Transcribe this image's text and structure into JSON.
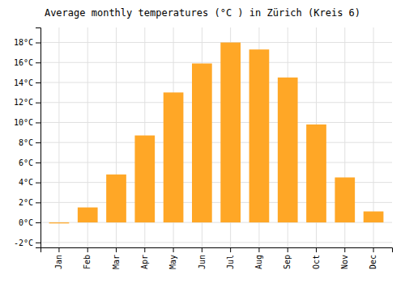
{
  "chart_data": {
    "type": "bar",
    "title": "Average monthly temperatures (°C ) in Zürich (Kreis 6)",
    "categories": [
      "Jan",
      "Feb",
      "Mar",
      "Apr",
      "May",
      "Jun",
      "Jul",
      "Aug",
      "Sep",
      "Oct",
      "Nov",
      "Dec"
    ],
    "values": [
      -0.1,
      1.5,
      4.8,
      8.7,
      13.0,
      15.9,
      18.0,
      17.3,
      14.5,
      9.8,
      4.5,
      1.1
    ],
    "color": "#FFA726",
    "ylim": [
      -2.5,
      19.5
    ],
    "yticks": [
      {
        "value": -2,
        "label": "-2°C"
      },
      {
        "value": 0,
        "label": "0°C"
      },
      {
        "value": 2,
        "label": "2°C"
      },
      {
        "value": 4,
        "label": "4°C"
      },
      {
        "value": 6,
        "label": "6°C"
      },
      {
        "value": 8,
        "label": "8°C"
      },
      {
        "value": 10,
        "label": "10°C"
      },
      {
        "value": 12,
        "label": "12°C"
      },
      {
        "value": 14,
        "label": "14°C"
      },
      {
        "value": 16,
        "label": "16°C"
      },
      {
        "value": 18,
        "label": "18°C"
      }
    ],
    "grid": true
  }
}
